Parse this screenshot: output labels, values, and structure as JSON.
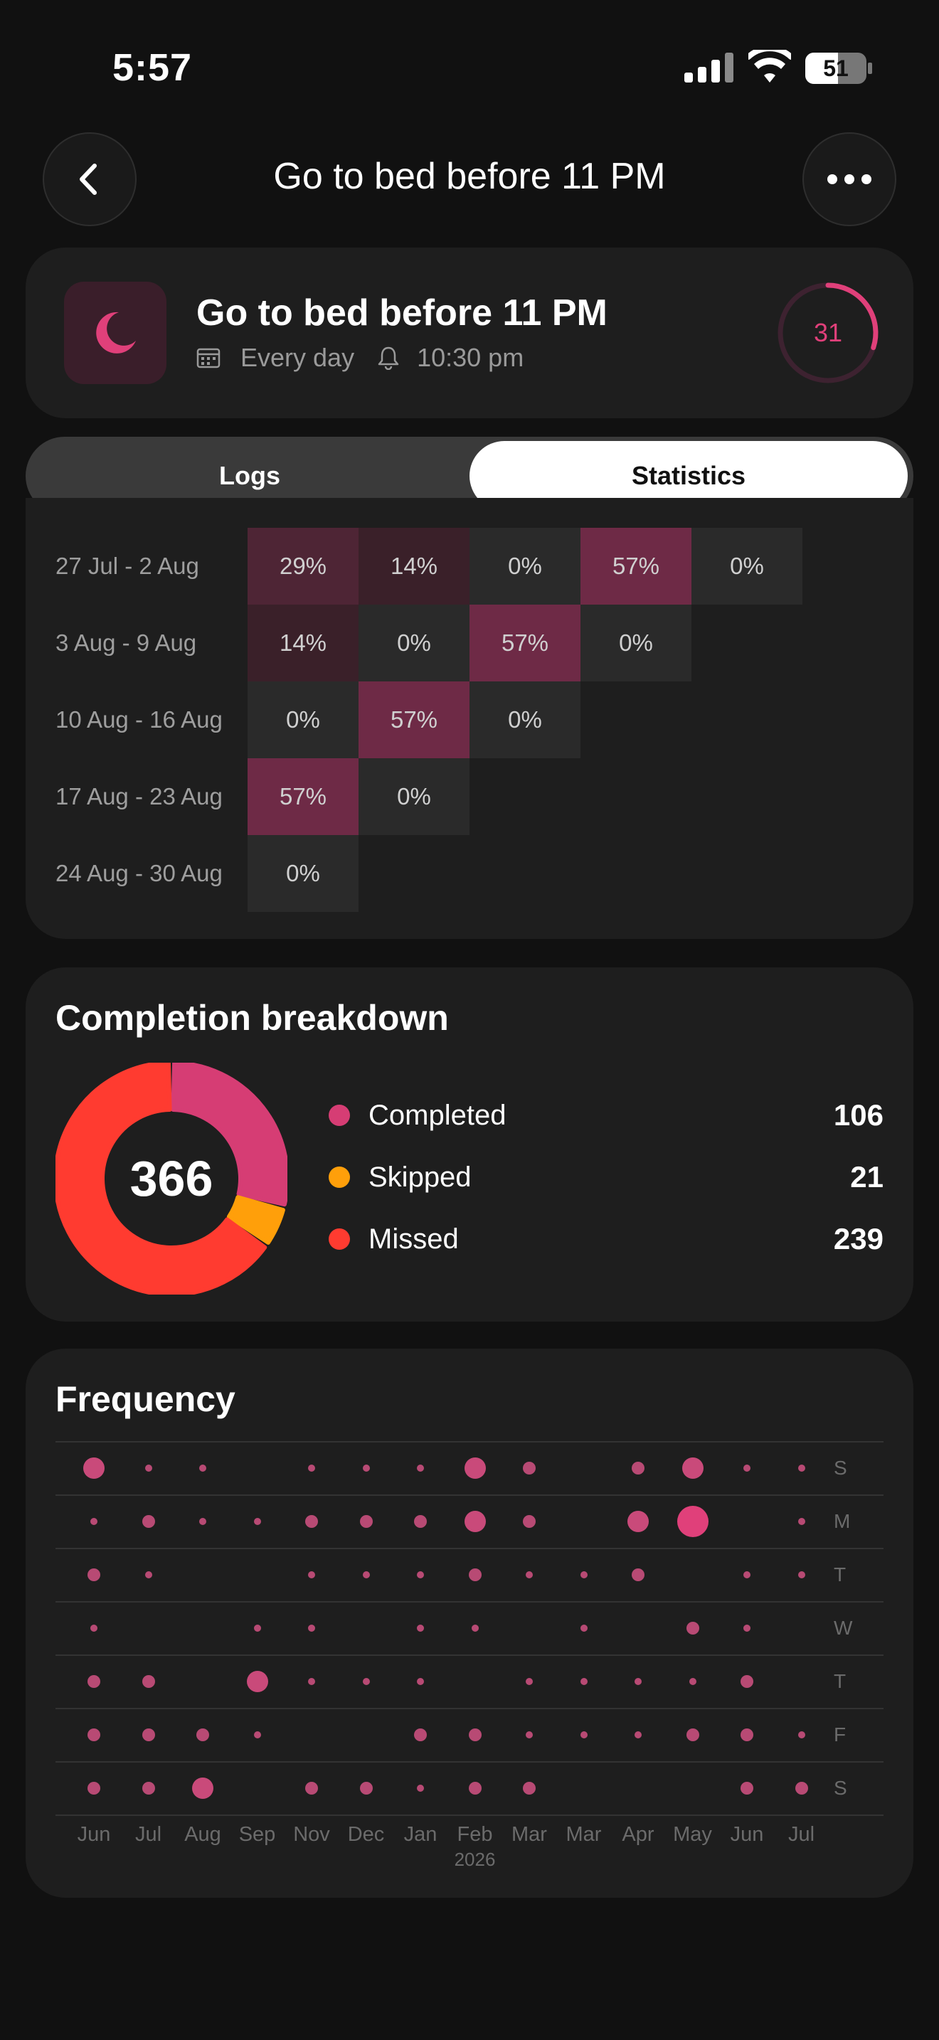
{
  "status_bar": {
    "time": "5:57",
    "battery": "51"
  },
  "nav": {
    "title": "Go to bed before 11 PM"
  },
  "habit": {
    "title": "Go to bed before 11 PM",
    "frequency": "Every day",
    "reminder": "10:30 pm",
    "streak": "31",
    "streak_progress": 0.3,
    "accent_color": "#e0407a"
  },
  "tabs": {
    "logs": "Logs",
    "statistics": "Statistics",
    "selected": "Statistics"
  },
  "heatmap": {
    "rows": [
      {
        "label": "27 Jul - 2 Aug",
        "cells": [
          "29%",
          "14%",
          "0%",
          "57%",
          "0%"
        ]
      },
      {
        "label": "3 Aug - 9 Aug",
        "cells": [
          "14%",
          "0%",
          "57%",
          "0%"
        ]
      },
      {
        "label": "10 Aug - 16 Aug",
        "cells": [
          "0%",
          "57%",
          "0%"
        ]
      },
      {
        "label": "17 Aug - 23 Aug",
        "cells": [
          "57%",
          "0%"
        ]
      },
      {
        "label": "24 Aug - 30 Aug",
        "cells": [
          "0%"
        ]
      }
    ]
  },
  "breakdown": {
    "title": "Completion breakdown",
    "total": "366",
    "items": [
      {
        "label": "Completed",
        "count": "106",
        "color": "#d63d74"
      },
      {
        "label": "Skipped",
        "count": "21",
        "color": "#ff9f0a"
      },
      {
        "label": "Missed",
        "count": "239",
        "color": "#ff3b30"
      }
    ]
  },
  "frequency": {
    "title": "Frequency",
    "days": [
      "S",
      "M",
      "T",
      "W",
      "T",
      "F",
      "S"
    ],
    "months": [
      "Jun",
      "Jul",
      "Aug",
      "Sep",
      "Nov",
      "Dec",
      "Jan",
      "Feb",
      "Mar",
      "Mar",
      "Apr",
      "May",
      "Jun",
      "Jul"
    ],
    "year_label": "2026",
    "dot_sizes": [
      [
        3,
        1,
        1,
        0,
        1,
        1,
        1,
        3,
        2,
        0,
        2,
        3,
        1,
        1
      ],
      [
        1,
        2,
        1,
        1,
        2,
        2,
        2,
        3,
        2,
        0,
        3,
        4,
        0,
        1
      ],
      [
        2,
        1,
        0,
        0,
        1,
        1,
        1,
        2,
        1,
        1,
        2,
        0,
        1,
        1
      ],
      [
        1,
        0,
        0,
        1,
        1,
        0,
        1,
        1,
        0,
        1,
        0,
        2,
        1,
        0
      ],
      [
        2,
        2,
        0,
        3,
        1,
        1,
        1,
        0,
        1,
        1,
        1,
        1,
        2,
        0
      ],
      [
        2,
        2,
        2,
        1,
        0,
        0,
        2,
        2,
        1,
        1,
        1,
        2,
        2,
        1
      ],
      [
        2,
        2,
        3,
        0,
        2,
        2,
        1,
        2,
        2,
        0,
        0,
        0,
        2,
        2
      ]
    ]
  }
}
